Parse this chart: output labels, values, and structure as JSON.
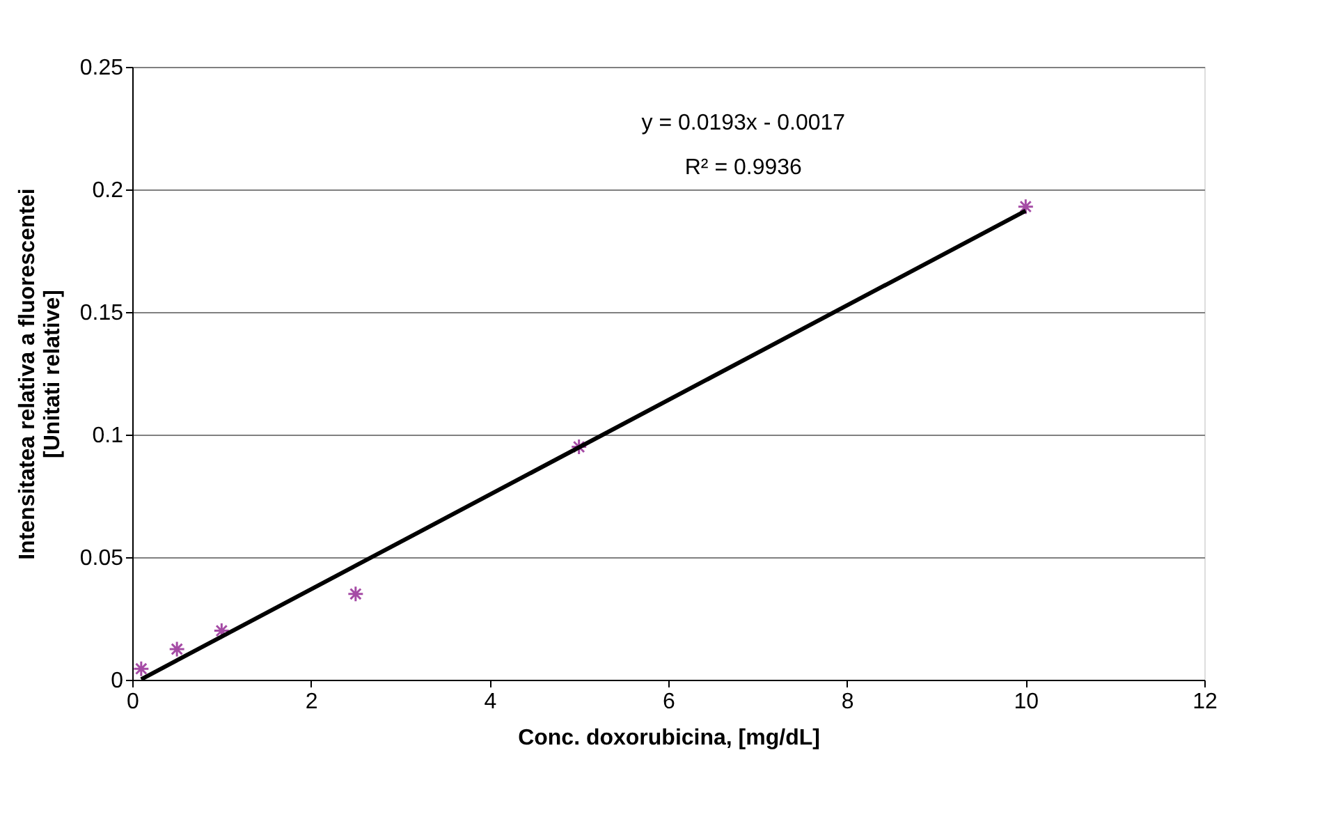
{
  "chart_data": {
    "type": "scatter",
    "xlabel": "Conc. doxorubicina, [mg/dL]",
    "ylabel": "Intensitatea relativa a fluorescentei\n[Unitati  relative]",
    "x": [
      0.1,
      0.5,
      1,
      2.5,
      5,
      10
    ],
    "series": [
      {
        "color": "#800080",
        "marker": "cross",
        "values": [
          0.0045,
          0.0125,
          0.02,
          0.035,
          0.095,
          0.193
        ]
      },
      {
        "type": "line",
        "color": "#000000",
        "x": [
          0.1,
          10
        ],
        "values": [
          0.0002,
          0.1913
        ],
        "line_style": "solid"
      }
    ],
    "annotations": [
      "y = 0.0193x - 0.0017",
      "R² = 0.9936"
    ],
    "xlim": [
      0,
      12
    ],
    "xticks": [
      0,
      2,
      4,
      6,
      8,
      10,
      12
    ],
    "ylim": [
      0,
      0.25
    ],
    "yticks": [
      0,
      0.05,
      0.1,
      0.15,
      0.2,
      0.25
    ],
    "grid": "y"
  }
}
